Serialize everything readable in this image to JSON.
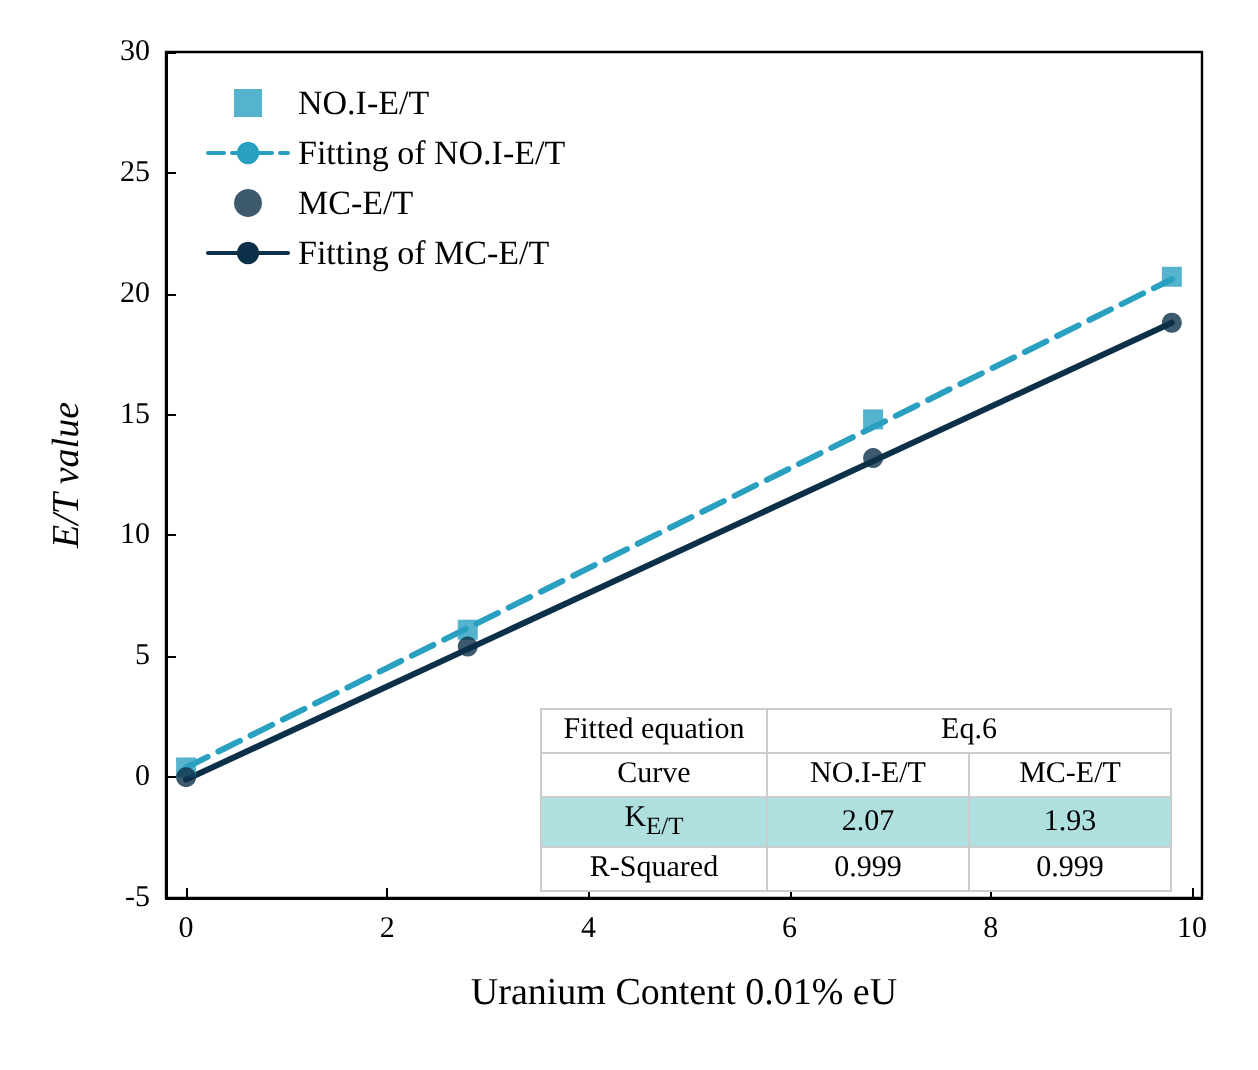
{
  "chart_data": {
    "type": "scatter",
    "xlabel": "Uranium Content 0.01% eU",
    "ylabel": "E/T value",
    "xlim": [
      -0.2,
      10.1
    ],
    "ylim": [
      -5,
      30
    ],
    "xticks": [
      0,
      2,
      4,
      6,
      8,
      10
    ],
    "yticks": [
      -5,
      0,
      5,
      10,
      15,
      20,
      25,
      30
    ],
    "grid": false,
    "legend": "top left",
    "series": [
      {
        "name": "NO.I-E/T",
        "marker": "square",
        "color": "#2aa0c0",
        "x": [
          0,
          2.8,
          6.83,
          9.8
        ],
        "values": [
          0.4,
          6.1,
          14.8,
          20.7
        ]
      },
      {
        "name": "Fitting of NO.I-E/T",
        "type": "line",
        "marker": "none",
        "line_style": "dashed",
        "color": "#2aa0c0",
        "x": [
          0,
          9.8
        ],
        "values": [
          0.4,
          20.6
        ]
      },
      {
        "name": "MC-E/T",
        "marker": "circle",
        "color": "#0d3049",
        "x": [
          0,
          2.8,
          6.83,
          9.8
        ],
        "values": [
          0,
          5.4,
          13.2,
          18.8
        ]
      },
      {
        "name": "Fitting of MC-E/T",
        "type": "line",
        "marker": "none",
        "line_style": "solid",
        "color": "#0d3049",
        "x": [
          0,
          9.8
        ],
        "values": [
          -0.1,
          18.8
        ]
      }
    ],
    "annotations": [
      "Fitted equation",
      "Eq.6",
      "Curve",
      "NO.I-E/T",
      "MC-E/T",
      "K$_{E/T}$",
      "2.07",
      "1.93",
      "R-Squared",
      "0.999",
      "0.999"
    ]
  }
}
